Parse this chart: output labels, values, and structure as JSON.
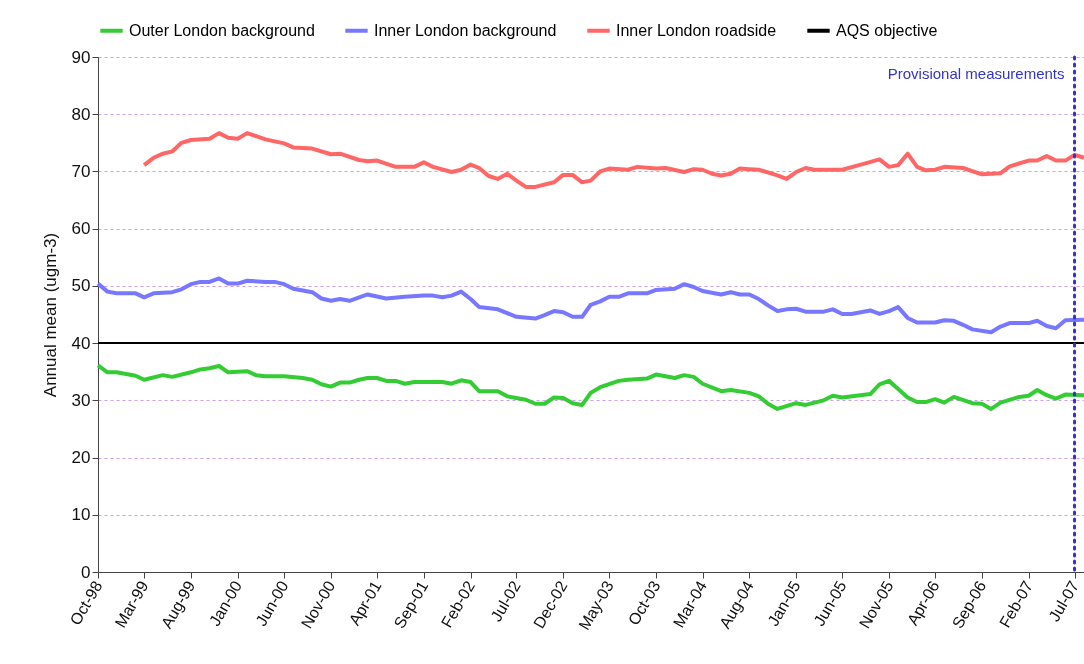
{
  "chart_data": {
    "type": "line",
    "ylabel": "Annual mean (ugm-3)",
    "legend": "top",
    "grid": "y",
    "xlim": [
      "1998-10",
      "2007-08"
    ],
    "ylim": [
      0,
      90
    ],
    "yticks": [
      0,
      10,
      20,
      30,
      40,
      50,
      60,
      70,
      80,
      90
    ],
    "xticks": [
      {
        "value": "1998-10",
        "label": "Oct-98"
      },
      {
        "value": "1999-03",
        "label": "Mar-99"
      },
      {
        "value": "1999-08",
        "label": "Aug-99"
      },
      {
        "value": "2000-01",
        "label": "Jan-00"
      },
      {
        "value": "2000-06",
        "label": "Jun-00"
      },
      {
        "value": "2000-11",
        "label": "Nov-00"
      },
      {
        "value": "2001-04",
        "label": "Apr-01"
      },
      {
        "value": "2001-09",
        "label": "Sep-01"
      },
      {
        "value": "2002-02",
        "label": "Feb-02"
      },
      {
        "value": "2002-07",
        "label": "Jul-02"
      },
      {
        "value": "2002-12",
        "label": "Dec-02"
      },
      {
        "value": "2003-05",
        "label": "May-03"
      },
      {
        "value": "2003-10",
        "label": "Oct-03"
      },
      {
        "value": "2004-03",
        "label": "Mar-04"
      },
      {
        "value": "2004-08",
        "label": "Aug-04"
      },
      {
        "value": "2005-01",
        "label": "Jan-05"
      },
      {
        "value": "2005-06",
        "label": "Jun-05"
      },
      {
        "value": "2005-11",
        "label": "Nov-05"
      },
      {
        "value": "2006-04",
        "label": "Apr-06"
      },
      {
        "value": "2006-09",
        "label": "Sep-06"
      },
      {
        "value": "2007-02",
        "label": "Feb-07"
      },
      {
        "value": "2007-07",
        "label": "Jul-07"
      }
    ],
    "series": [
      {
        "name": "Outer London background",
        "color": "#33cc33",
        "x": [
          "1998-10",
          "1998-11",
          "1998-12",
          "1999-02",
          "1999-03",
          "1999-05",
          "1999-06",
          "1999-08",
          "1999-09",
          "1999-10",
          "1999-11",
          "1999-12",
          "2000-02",
          "2000-03",
          "2000-04",
          "2000-06",
          "2000-08",
          "2000-09",
          "2000-10",
          "2000-11",
          "2000-12",
          "2001-01",
          "2001-02",
          "2001-03",
          "2001-04",
          "2001-05",
          "2001-06",
          "2001-07",
          "2001-08",
          "2001-11",
          "2001-12",
          "2002-01",
          "2002-02",
          "2002-03",
          "2002-05",
          "2002-06",
          "2002-08",
          "2002-09",
          "2002-10",
          "2002-11",
          "2002-12",
          "2003-01",
          "2003-02",
          "2003-03",
          "2003-04",
          "2003-06",
          "2003-07",
          "2003-09",
          "2003-10",
          "2003-12",
          "2004-01",
          "2004-02",
          "2004-03",
          "2004-05",
          "2004-06",
          "2004-08",
          "2004-09",
          "2004-10",
          "2004-11",
          "2005-01",
          "2005-02",
          "2005-04",
          "2005-05",
          "2005-06",
          "2005-09",
          "2005-10",
          "2005-11",
          "2005-12",
          "2006-01",
          "2006-02",
          "2006-03",
          "2006-04",
          "2006-05",
          "2006-06",
          "2006-08",
          "2006-09",
          "2006-10",
          "2006-11",
          "2007-01",
          "2007-02",
          "2007-03",
          "2007-04",
          "2007-05",
          "2007-06",
          "2007-08"
        ],
        "values": [
          36.1,
          34.9,
          34.9,
          34.3,
          33.6,
          34.4,
          34.1,
          34.9,
          35.4,
          35.6,
          36.0,
          34.9,
          35.1,
          34.4,
          34.2,
          34.2,
          33.9,
          33.6,
          32.8,
          32.4,
          33.1,
          33.1,
          33.6,
          33.9,
          33.9,
          33.4,
          33.4,
          32.9,
          33.2,
          33.2,
          32.9,
          33.5,
          33.2,
          31.6,
          31.6,
          30.7,
          30.1,
          29.4,
          29.4,
          30.5,
          30.4,
          29.5,
          29.2,
          31.3,
          32.3,
          33.4,
          33.6,
          33.8,
          34.5,
          33.9,
          34.4,
          34.1,
          32.9,
          31.6,
          31.8,
          31.3,
          30.7,
          29.4,
          28.5,
          29.5,
          29.2,
          30.0,
          30.8,
          30.5,
          31.1,
          32.8,
          33.4,
          32.0,
          30.5,
          29.7,
          29.7,
          30.2,
          29.6,
          30.6,
          29.5,
          29.4,
          28.5,
          29.6,
          30.6,
          30.8,
          31.8,
          30.9,
          30.3,
          31.0,
          30.9
        ]
      },
      {
        "name": "Inner London background",
        "color": "#7777ff",
        "x": [
          "1998-10",
          "1998-11",
          "1998-12",
          "1999-02",
          "1999-03",
          "1999-04",
          "1999-06",
          "1999-07",
          "1999-08",
          "1999-09",
          "1999-10",
          "1999-11",
          "1999-12",
          "2000-01",
          "2000-02",
          "2000-04",
          "2000-05",
          "2000-06",
          "2000-07",
          "2000-09",
          "2000-10",
          "2000-11",
          "2000-12",
          "2001-01",
          "2001-03",
          "2001-05",
          "2001-07",
          "2001-09",
          "2001-10",
          "2001-11",
          "2001-12",
          "2002-01",
          "2002-02",
          "2002-03",
          "2002-05",
          "2002-07",
          "2002-09",
          "2002-10",
          "2002-11",
          "2002-12",
          "2003-01",
          "2003-02",
          "2003-03",
          "2003-04",
          "2003-05",
          "2003-06",
          "2003-07",
          "2003-09",
          "2003-10",
          "2003-12",
          "2004-01",
          "2004-02",
          "2004-03",
          "2004-05",
          "2004-06",
          "2004-07",
          "2004-08",
          "2004-09",
          "2004-10",
          "2004-11",
          "2004-12",
          "2005-01",
          "2005-02",
          "2005-04",
          "2005-05",
          "2005-06",
          "2005-07",
          "2005-09",
          "2005-10",
          "2005-11",
          "2005-12",
          "2006-01",
          "2006-02",
          "2006-04",
          "2006-05",
          "2006-06",
          "2006-07",
          "2006-08",
          "2006-10",
          "2006-11",
          "2006-12",
          "2007-02",
          "2007-03",
          "2007-04",
          "2007-05",
          "2007-06",
          "2007-08"
        ],
        "values": [
          50.4,
          49.0,
          48.7,
          48.7,
          48.0,
          48.7,
          48.9,
          49.4,
          50.3,
          50.7,
          50.7,
          51.3,
          50.4,
          50.4,
          50.9,
          50.7,
          50.7,
          50.3,
          49.5,
          48.9,
          47.8,
          47.4,
          47.7,
          47.4,
          48.5,
          47.8,
          48.1,
          48.3,
          48.3,
          48.0,
          48.3,
          49.0,
          47.7,
          46.3,
          45.9,
          44.6,
          44.3,
          44.9,
          45.6,
          45.4,
          44.6,
          44.6,
          46.7,
          47.3,
          48.1,
          48.1,
          48.7,
          48.7,
          49.3,
          49.5,
          50.3,
          49.8,
          49.1,
          48.5,
          48.9,
          48.5,
          48.5,
          47.7,
          46.6,
          45.6,
          45.9,
          46.0,
          45.5,
          45.5,
          45.9,
          45.1,
          45.1,
          45.7,
          45.1,
          45.6,
          46.3,
          44.4,
          43.6,
          43.6,
          44.0,
          43.9,
          43.2,
          42.4,
          41.9,
          42.9,
          43.5,
          43.5,
          43.9,
          43.0,
          42.6,
          44.0,
          44.1
        ]
      },
      {
        "name": "Inner London roadside",
        "color": "#ff6666",
        "x": [
          "1999-03",
          "1999-04",
          "1999-05",
          "1999-06",
          "1999-07",
          "1999-08",
          "1999-10",
          "1999-11",
          "1999-12",
          "2000-01",
          "2000-02",
          "2000-04",
          "2000-06",
          "2000-07",
          "2000-09",
          "2000-11",
          "2000-12",
          "2001-02",
          "2001-03",
          "2001-04",
          "2001-06",
          "2001-08",
          "2001-09",
          "2001-10",
          "2001-12",
          "2002-01",
          "2002-02",
          "2002-03",
          "2002-04",
          "2002-05",
          "2002-06",
          "2002-07",
          "2002-08",
          "2002-09",
          "2002-11",
          "2002-12",
          "2003-01",
          "2003-02",
          "2003-03",
          "2003-04",
          "2003-05",
          "2003-07",
          "2003-08",
          "2003-10",
          "2003-11",
          "2004-01",
          "2004-02",
          "2004-03",
          "2004-04",
          "2004-05",
          "2004-06",
          "2004-07",
          "2004-08",
          "2004-09",
          "2004-11",
          "2004-12",
          "2005-01",
          "2005-02",
          "2005-03",
          "2005-06",
          "2005-08",
          "2005-10",
          "2005-11",
          "2005-12",
          "2006-01",
          "2006-02",
          "2006-03",
          "2006-04",
          "2006-05",
          "2006-07",
          "2006-09",
          "2006-11",
          "2006-12",
          "2007-02",
          "2007-03",
          "2007-04",
          "2007-05",
          "2007-06",
          "2007-07",
          "2007-08"
        ],
        "values": [
          71.1,
          72.4,
          73.1,
          73.5,
          75.0,
          75.5,
          75.7,
          76.7,
          75.9,
          75.7,
          76.7,
          75.6,
          74.9,
          74.2,
          74.0,
          73.0,
          73.1,
          72.0,
          71.8,
          71.9,
          70.8,
          70.8,
          71.6,
          70.8,
          69.9,
          70.3,
          71.2,
          70.6,
          69.2,
          68.7,
          69.6,
          68.4,
          67.3,
          67.3,
          68.1,
          69.4,
          69.4,
          68.1,
          68.4,
          70.0,
          70.5,
          70.3,
          70.8,
          70.5,
          70.6,
          69.9,
          70.4,
          70.3,
          69.6,
          69.3,
          69.6,
          70.5,
          70.4,
          70.3,
          69.3,
          68.7,
          69.9,
          70.6,
          70.3,
          70.3,
          71.2,
          72.1,
          70.8,
          71.1,
          73.1,
          70.8,
          70.2,
          70.3,
          70.8,
          70.6,
          69.5,
          69.7,
          70.9,
          71.9,
          71.9,
          72.7,
          71.9,
          71.9,
          72.9,
          72.4
        ]
      }
    ],
    "ref_lines": [
      {
        "axis": "y",
        "value": 40,
        "label": "AQS objective",
        "color": "#000000"
      },
      {
        "axis": "x",
        "value": "2007-07",
        "label": "Provisional measurements",
        "color": "#3333cc",
        "line_style": "dotted"
      }
    ]
  }
}
